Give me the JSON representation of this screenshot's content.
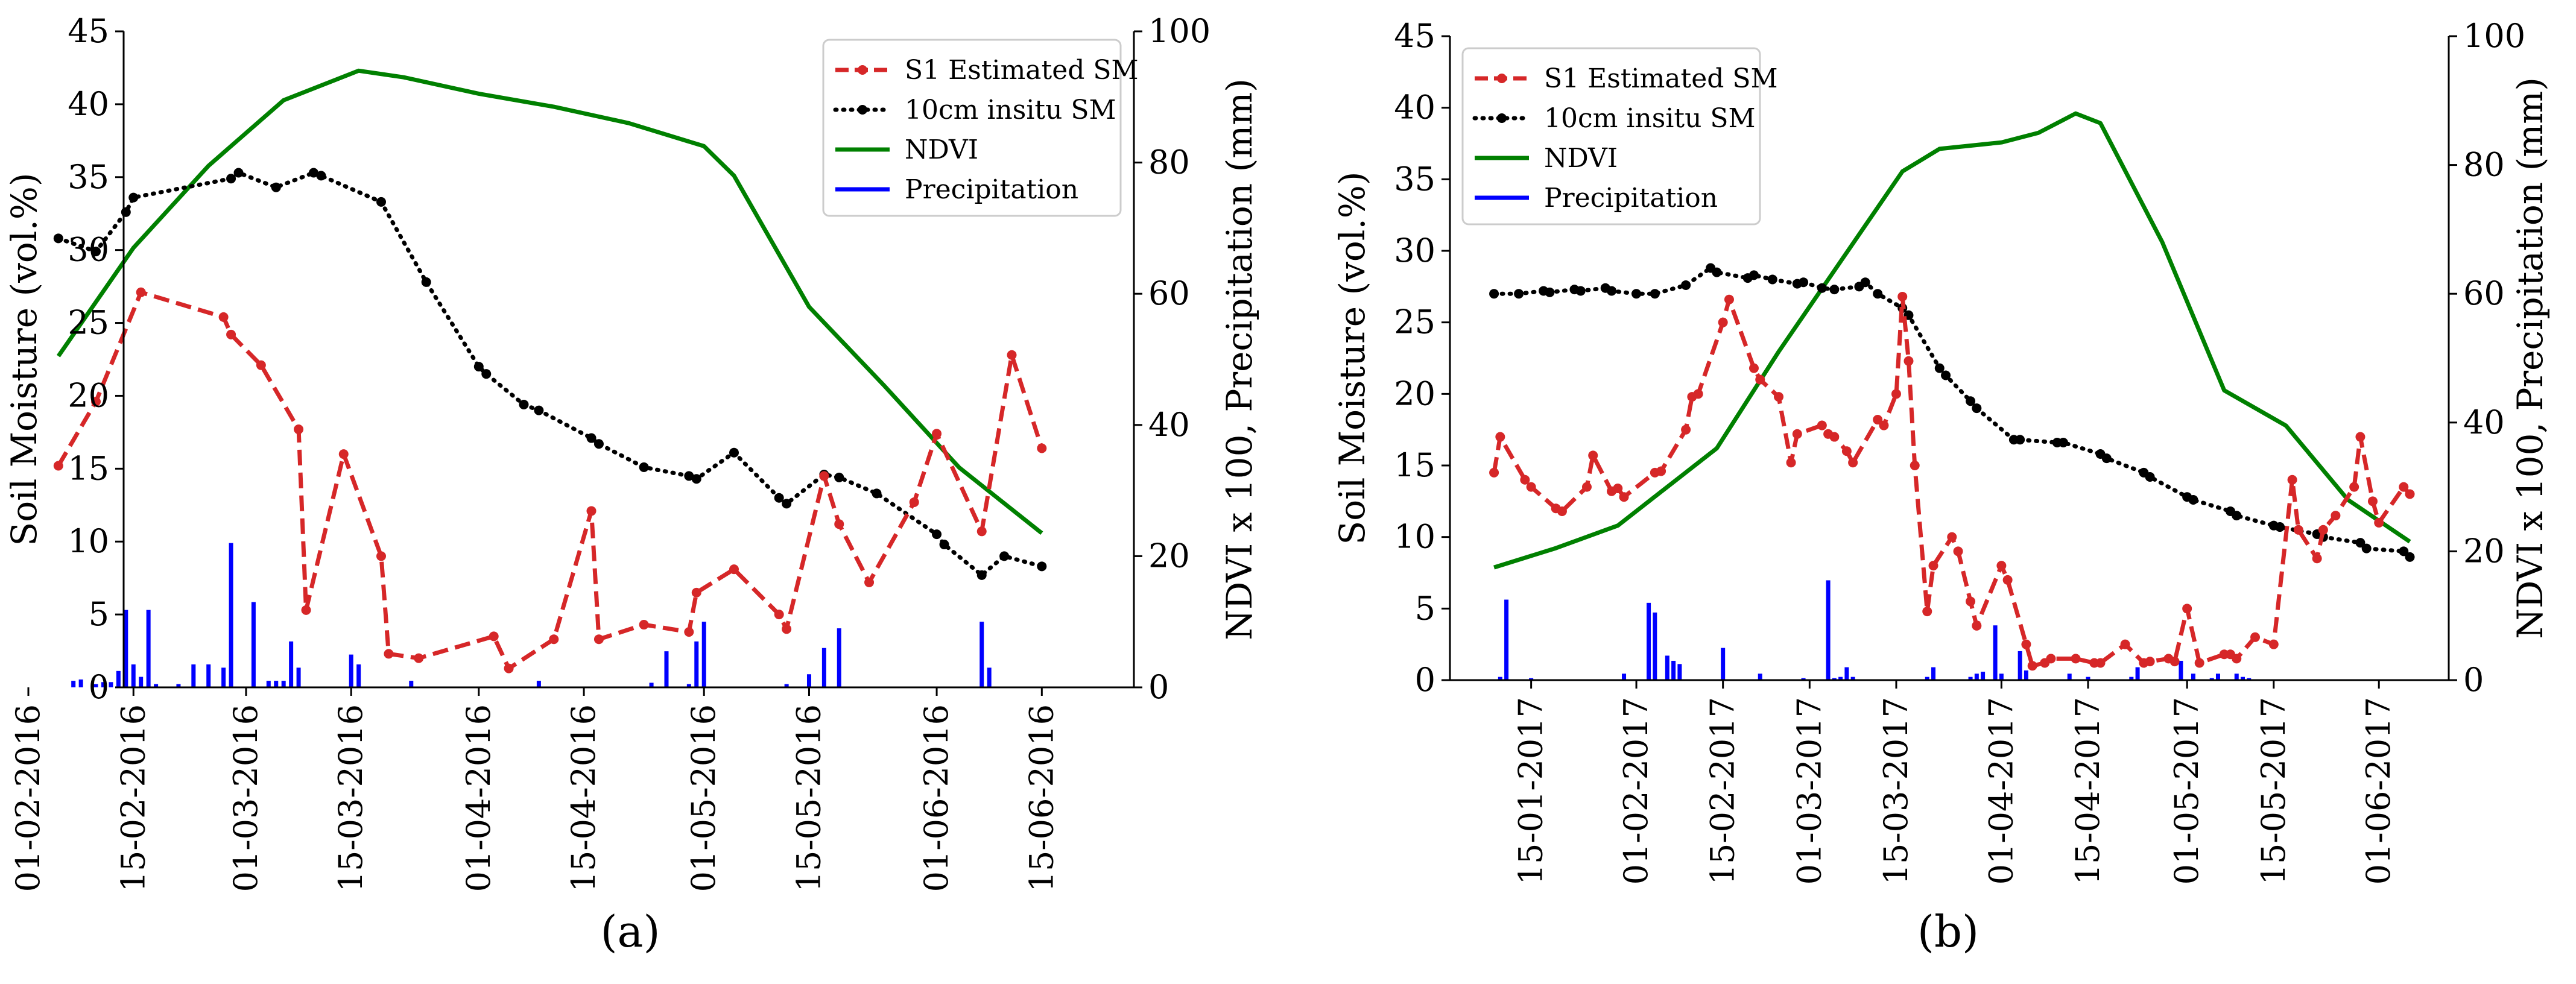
{
  "chart_data": [
    {
      "type": "line",
      "caption": "(a)",
      "ylabel_left": "Soil Moisture (vol.%)",
      "ylabel_right": "NDVI x 100, Precipitation (mm)",
      "ylim_left": [
        0,
        45
      ],
      "ylim_right": [
        0,
        100
      ],
      "yticks_left": [
        "0",
        "5",
        "10",
        "15",
        "20",
        "25",
        "30",
        "35",
        "40",
        "45"
      ],
      "yticks_right": [
        "0",
        "20",
        "40",
        "60",
        "80",
        "100"
      ],
      "x_range_days": [
        0,
        141
      ],
      "xticks": [
        {
          "label": "01-02-2016",
          "day": 0
        },
        {
          "label": "15-02-2016",
          "day": 14
        },
        {
          "label": "01-03-2016",
          "day": 29
        },
        {
          "label": "15-03-2016",
          "day": 43
        },
        {
          "label": "01-04-2016",
          "day": 60
        },
        {
          "label": "15-04-2016",
          "day": 74
        },
        {
          "label": "01-05-2016",
          "day": 90
        },
        {
          "label": "15-05-2016",
          "day": 104
        },
        {
          "label": "01-06-2016",
          "day": 121
        },
        {
          "label": "15-06-2016",
          "day": 135
        }
      ],
      "legend": {
        "position": "top-right",
        "entries": [
          {
            "key": "s1",
            "label": "S1 Estimated SM"
          },
          {
            "key": "insitu",
            "label": "10cm insitu SM"
          },
          {
            "key": "ndvi",
            "label": "NDVI"
          },
          {
            "key": "precip",
            "label": "Precipitation"
          }
        ]
      },
      "series": {
        "s1": {
          "name": "S1 Estimated SM",
          "color": "#d62728",
          "axis": "left",
          "x": [
            4,
            9,
            15,
            26,
            27,
            31,
            36,
            37,
            42,
            47,
            48,
            52,
            62,
            64,
            70,
            75,
            76,
            82,
            88,
            89,
            94,
            100,
            101,
            106,
            108,
            112,
            118,
            121,
            127,
            131,
            135
          ],
          "y": [
            15.2,
            19.6,
            27.1,
            25.4,
            24.2,
            22.1,
            17.7,
            5.3,
            16.0,
            9.0,
            2.3,
            2.0,
            3.5,
            1.3,
            3.3,
            12.1,
            3.3,
            4.3,
            3.8,
            6.5,
            8.1,
            5.0,
            4.0,
            14.5,
            11.2,
            7.2,
            12.7,
            17.4,
            10.7,
            22.8,
            16.4
          ]
        },
        "insitu": {
          "name": "10cm insitu SM",
          "color": "#000000",
          "axis": "left",
          "x": [
            4,
            9,
            13,
            14,
            27,
            28,
            33,
            38,
            39,
            47,
            53,
            60,
            61,
            66,
            68,
            75,
            76,
            82,
            88,
            89,
            94,
            100,
            101,
            106,
            108,
            113,
            121,
            122,
            127,
            130,
            135
          ],
          "y": [
            30.8,
            29.9,
            32.6,
            33.6,
            34.9,
            35.3,
            34.3,
            35.3,
            35.1,
            33.3,
            27.8,
            22.0,
            21.5,
            19.4,
            19.0,
            17.1,
            16.7,
            15.1,
            14.5,
            14.3,
            16.1,
            13.0,
            12.6,
            14.6,
            14.4,
            13.3,
            10.5,
            9.8,
            7.7,
            9.0,
            8.3
          ]
        },
        "ndvi": {
          "name": "NDVI",
          "color": "#008000",
          "axis": "right",
          "x": [
            4,
            14,
            24,
            34,
            44,
            50,
            60,
            70,
            80,
            90,
            94,
            104,
            114,
            124,
            135
          ],
          "y": [
            50.5,
            67.0,
            79.5,
            89.5,
            94.0,
            93.0,
            90.5,
            88.5,
            86.0,
            82.5,
            78.0,
            58.0,
            46.0,
            33.5,
            23.5
          ]
        },
        "precip": {
          "name": "Precipitation",
          "color": "#0000ff",
          "axis": "right",
          "x": [
            6,
            7,
            9,
            10,
            11,
            12,
            13,
            14,
            15,
            16,
            17,
            20,
            22,
            24,
            26,
            27,
            30,
            32,
            33,
            34,
            35,
            36,
            43,
            44,
            51,
            68,
            83,
            85,
            88,
            89,
            90,
            101,
            104,
            106,
            108,
            127,
            128
          ],
          "y": [
            1.0,
            1.2,
            0.5,
            0.8,
            0.8,
            2.5,
            11.8,
            3.5,
            1.6,
            11.8,
            0.5,
            0.5,
            3.5,
            3.5,
            3.0,
            22.0,
            13.0,
            1.0,
            1.0,
            1.0,
            7.0,
            3.0,
            5.0,
            3.5,
            1.0,
            1.0,
            0.7,
            5.5,
            0.5,
            7.0,
            10.0,
            0.5,
            2.0,
            6.0,
            9.0,
            10.0,
            3.0
          ]
        }
      }
    },
    {
      "type": "line",
      "caption": "(b)",
      "ylabel_left": "Soil Moisture (vol.%)",
      "ylabel_right": "NDVI x 100, Precipitation (mm)",
      "ylim_left": [
        0,
        45
      ],
      "ylim_right": [
        0,
        100
      ],
      "yticks_left": [
        "0",
        "5",
        "10",
        "15",
        "20",
        "25",
        "30",
        "35",
        "40",
        "45"
      ],
      "yticks_right": [
        "0",
        "20",
        "40",
        "60",
        "80",
        "100"
      ],
      "x_range_days": [
        0,
        154
      ],
      "xticks": [
        {
          "label": "15-01-2017",
          "day": 14
        },
        {
          "label": "01-02-2017",
          "day": 31
        },
        {
          "label": "15-02-2017",
          "day": 45
        },
        {
          "label": "01-03-2017",
          "day": 59
        },
        {
          "label": "15-03-2017",
          "day": 73
        },
        {
          "label": "01-04-2017",
          "day": 90
        },
        {
          "label": "15-04-2017",
          "day": 104
        },
        {
          "label": "01-05-2017",
          "day": 120
        },
        {
          "label": "15-05-2017",
          "day": 134
        },
        {
          "label": "01-06-2017",
          "day": 151
        }
      ],
      "legend": {
        "position": "top-left",
        "entries": [
          {
            "key": "s1",
            "label": "S1 Estimated SM"
          },
          {
            "key": "insitu",
            "label": "10cm insitu SM"
          },
          {
            "key": "ndvi",
            "label": "NDVI"
          },
          {
            "key": "precip",
            "label": "Precipitation"
          }
        ]
      },
      "series": {
        "s1": {
          "name": "S1 Estimated SM",
          "color": "#d62728",
          "axis": "left",
          "x": [
            8,
            9,
            13,
            14,
            18,
            19,
            23,
            24,
            27,
            28,
            29,
            34,
            35,
            39,
            40,
            41,
            45,
            46,
            50,
            51,
            54,
            56,
            57,
            61,
            62,
            63,
            65,
            66,
            70,
            71,
            73,
            74,
            75,
            76,
            78,
            79,
            82,
            83,
            85,
            86,
            90,
            91,
            94,
            95,
            97,
            98,
            102,
            105,
            106,
            110,
            113,
            114,
            117,
            118,
            120,
            122,
            126,
            127,
            128,
            131,
            134,
            137,
            138,
            141,
            142,
            144,
            147,
            148,
            150,
            151,
            155,
            156
          ],
          "y": [
            14.5,
            17.0,
            14.0,
            13.5,
            12.0,
            11.8,
            13.5,
            15.7,
            13.2,
            13.4,
            12.8,
            14.5,
            14.6,
            17.5,
            19.8,
            20.0,
            25.0,
            26.6,
            21.8,
            21.0,
            19.8,
            15.2,
            17.2,
            17.8,
            17.2,
            17.0,
            16.0,
            15.2,
            18.2,
            17.8,
            20.0,
            26.8,
            22.3,
            15.0,
            4.8,
            8.0,
            10.0,
            9.0,
            5.5,
            3.8,
            8.0,
            7.0,
            2.5,
            1.0,
            1.2,
            1.5,
            1.5,
            1.2,
            1.2,
            2.5,
            1.2,
            1.3,
            1.5,
            1.3,
            5.0,
            1.2,
            1.8,
            1.8,
            1.5,
            3.0,
            2.5,
            14.0,
            10.5,
            8.5,
            10.5,
            11.5,
            13.5,
            17.0,
            12.5,
            11.0,
            13.5,
            13.0
          ]
        },
        "insitu": {
          "name": "10cm insitu SM",
          "color": "#000000",
          "axis": "left",
          "x": [
            8,
            12,
            16,
            17,
            21,
            22,
            26,
            27,
            31,
            34,
            39,
            43,
            44,
            49,
            50,
            53,
            57,
            58,
            61,
            63,
            67,
            68,
            70,
            74,
            75,
            80,
            81,
            85,
            86,
            92,
            93,
            99,
            100,
            106,
            107,
            113,
            114,
            120,
            121,
            127,
            128,
            134,
            135,
            141,
            142,
            148,
            149,
            155,
            156
          ],
          "y": [
            27.0,
            27.0,
            27.2,
            27.1,
            27.3,
            27.2,
            27.4,
            27.2,
            27.0,
            27.0,
            27.6,
            28.8,
            28.5,
            28.1,
            28.3,
            28.0,
            27.7,
            27.8,
            27.4,
            27.3,
            27.5,
            27.8,
            27.0,
            26.0,
            25.5,
            21.8,
            21.3,
            19.5,
            19.0,
            16.8,
            16.8,
            16.6,
            16.6,
            15.8,
            15.5,
            14.5,
            14.2,
            12.8,
            12.6,
            11.8,
            11.5,
            10.8,
            10.7,
            10.2,
            10.0,
            9.6,
            9.2,
            9.0,
            8.6
          ]
        },
        "ndvi": {
          "name": "NDVI",
          "color": "#008000",
          "axis": "right",
          "x": [
            8,
            18,
            28,
            34,
            44,
            54,
            64,
            74,
            80,
            90,
            96,
            102,
            106,
            116,
            126,
            136,
            146,
            156
          ],
          "y": [
            17.5,
            20.5,
            24.0,
            28.5,
            36.0,
            51.0,
            65.0,
            79.0,
            82.5,
            83.5,
            85.0,
            88.0,
            86.5,
            68.0,
            45.0,
            39.5,
            28.0,
            21.5
          ]
        },
        "precip": {
          "name": "Precipitation",
          "color": "#0000ff",
          "axis": "right",
          "x": [
            9,
            10,
            14,
            29,
            33,
            34,
            36,
            37,
            38,
            45,
            51,
            58,
            62,
            63,
            64,
            65,
            66,
            78,
            79,
            85,
            86,
            87,
            89,
            90,
            93,
            94,
            101,
            104,
            111,
            112,
            119,
            121,
            124,
            125,
            128,
            129,
            130
          ],
          "y": [
            0.5,
            12.5,
            0.3,
            1.0,
            12.0,
            10.5,
            3.8,
            3.0,
            2.5,
            5.0,
            1.0,
            0.3,
            15.5,
            0.3,
            0.5,
            2.0,
            0.5,
            0.5,
            2.0,
            0.5,
            1.0,
            1.3,
            8.5,
            1.0,
            4.5,
            1.5,
            1.0,
            0.5,
            0.5,
            2.0,
            3.0,
            1.0,
            0.3,
            1.0,
            1.0,
            0.5,
            0.3
          ]
        }
      }
    }
  ]
}
